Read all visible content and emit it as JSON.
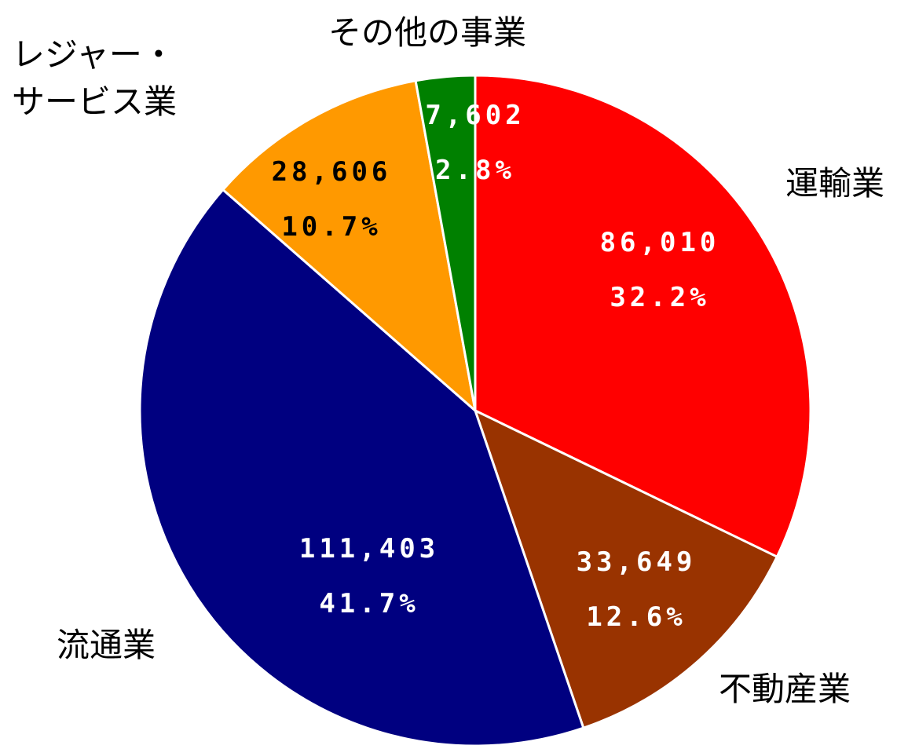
{
  "chart_data": {
    "type": "pie",
    "categories": [
      "運輸業",
      "不動産業",
      "流通業",
      "レジャー・\nサービス業",
      "その他の事業"
    ],
    "values": [
      86010,
      33649,
      111403,
      28606,
      7602
    ],
    "value_labels": [
      "86,010",
      "33,649",
      "111,403",
      "28,606",
      "7,602"
    ],
    "percent": [
      32.2,
      12.6,
      41.7,
      10.7,
      2.8
    ],
    "percent_labels": [
      "32.2%",
      "12.6%",
      "41.7%",
      "10.7%",
      "2.8%"
    ],
    "colors": [
      "#ff0000",
      "#993300",
      "#000080",
      "#ff9900",
      "#008000"
    ]
  }
}
